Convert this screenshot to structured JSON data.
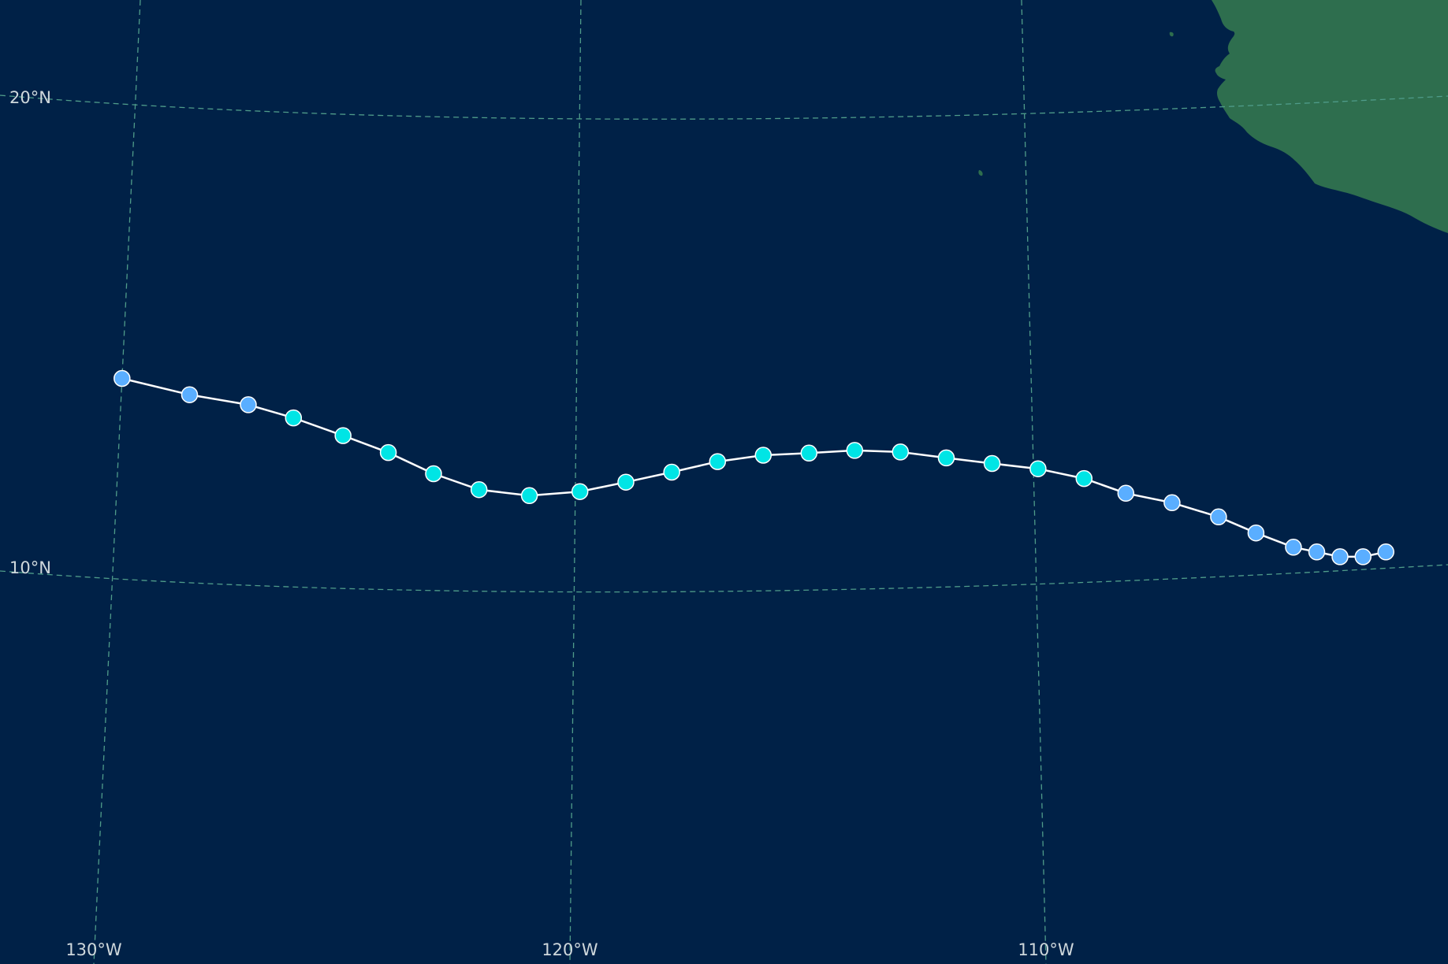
{
  "map": {
    "colors": {
      "ocean": "#002147",
      "land": "#2e6e4e",
      "graticule": "#4f9c8a",
      "track_line": "#ffffff",
      "label_text": "#cfd8dc"
    },
    "latitude_labels": [
      "20°N",
      "10°N"
    ],
    "longitude_labels": [
      "130°W",
      "120°W",
      "110°W"
    ],
    "legend_colors": {
      "depression": "#5aaeff",
      "storm": "#00e5e5"
    },
    "track": [
      {
        "lon": -130.0,
        "lat": 14.4,
        "cat": "depression"
      },
      {
        "lon": -128.5,
        "lat": 14.2,
        "cat": "depression"
      },
      {
        "lon": -127.2,
        "lat": 14.1,
        "cat": "depression"
      },
      {
        "lon": -126.2,
        "lat": 13.9,
        "cat": "storm"
      },
      {
        "lon": -125.1,
        "lat": 13.6,
        "cat": "storm"
      },
      {
        "lon": -124.1,
        "lat": 13.3,
        "cat": "storm"
      },
      {
        "lon": -123.1,
        "lat": 12.9,
        "cat": "storm"
      },
      {
        "lon": -122.1,
        "lat": 12.6,
        "cat": "storm"
      },
      {
        "lon": -121.0,
        "lat": 12.5,
        "cat": "storm"
      },
      {
        "lon": -119.9,
        "lat": 12.6,
        "cat": "storm"
      },
      {
        "lon": -118.9,
        "lat": 12.8,
        "cat": "storm"
      },
      {
        "lon": -117.9,
        "lat": 13.0,
        "cat": "storm"
      },
      {
        "lon": -116.9,
        "lat": 13.2,
        "cat": "storm"
      },
      {
        "lon": -115.9,
        "lat": 13.3,
        "cat": "storm"
      },
      {
        "lon": -114.9,
        "lat": 13.3,
        "cat": "storm"
      },
      {
        "lon": -113.9,
        "lat": 13.3,
        "cat": "storm"
      },
      {
        "lon": -112.9,
        "lat": 13.2,
        "cat": "storm"
      },
      {
        "lon": -111.9,
        "lat": 13.0,
        "cat": "storm"
      },
      {
        "lon": -110.9,
        "lat": 12.8,
        "cat": "storm"
      },
      {
        "lon": -109.9,
        "lat": 12.6,
        "cat": "storm"
      },
      {
        "lon": -108.9,
        "lat": 12.3,
        "cat": "storm"
      },
      {
        "lon": -108.0,
        "lat": 11.9,
        "cat": "depression"
      },
      {
        "lon": -107.0,
        "lat": 11.6,
        "cat": "depression"
      },
      {
        "lon": -106.0,
        "lat": 11.2,
        "cat": "depression"
      },
      {
        "lon": -105.2,
        "lat": 10.8,
        "cat": "depression"
      },
      {
        "lon": -104.4,
        "lat": 10.5,
        "cat": "depression"
      },
      {
        "lon": -103.9,
        "lat": 10.4,
        "cat": "depression"
      },
      {
        "lon": -103.4,
        "lat": 10.3,
        "cat": "depression"
      },
      {
        "lon": -102.9,
        "lat": 10.3,
        "cat": "depression"
      },
      {
        "lon": -102.4,
        "lat": 10.4,
        "cat": "depression"
      }
    ]
  }
}
